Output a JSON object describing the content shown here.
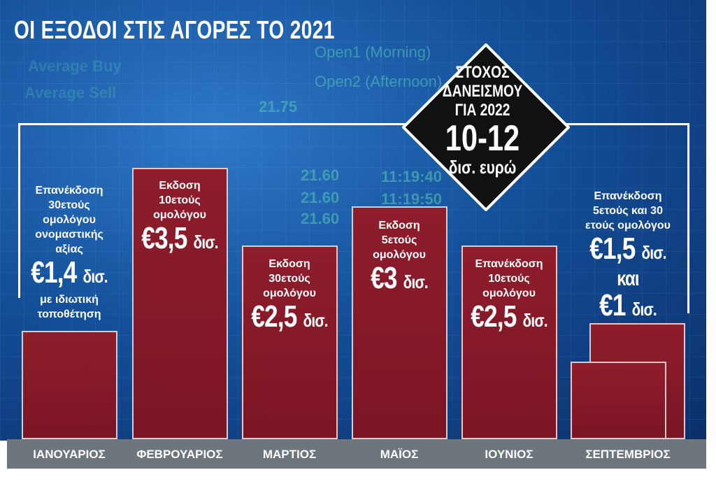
{
  "chart_data": {
    "type": "bar",
    "title": "ΟΙ ΕΞΟΔΟΙ ΣΤΙΣ ΑΓΟΡΕΣ ΤΟ 2021",
    "categories": [
      "ΙΑΝΟΥΑΡΙΟΣ",
      "ΦΕΒΡΟΥΑΡΙΟΣ",
      "ΜΑΡΤΙΟΣ",
      "ΜΑΪΟΣ",
      "ΙΟΥΝΙΟΣ",
      "ΣΕΠΤΕΜΒΡΙΟΣ"
    ],
    "unit": "δισ. ευρώ",
    "bars": [
      {
        "category": "ΙΑΝΟΥΑΡΙΟΣ",
        "values": [
          1.4
        ],
        "desc": [
          "Επανέκδοση",
          "30ετούς",
          "ομολόγου",
          "ονομαστικής",
          "αξίας"
        ],
        "amount": "€1,4",
        "suffix": "δισ.",
        "note": [
          "με ιδιωτική",
          "τοποθέτηση"
        ]
      },
      {
        "category": "ΦΕΒΡΟΥΑΡΙΟΣ",
        "values": [
          3.5
        ],
        "desc": [
          "Εκδοση",
          "10ετούς",
          "ομολόγου"
        ],
        "amount": "€3,5",
        "suffix": "δισ."
      },
      {
        "category": "ΜΑΡΤΙΟΣ",
        "values": [
          2.5
        ],
        "desc": [
          "Εκδοση",
          "30ετούς",
          "ομολόγου"
        ],
        "amount": "€2,5",
        "suffix": "δισ."
      },
      {
        "category": "ΜΑΪΟΣ",
        "values": [
          3
        ],
        "desc": [
          "Εκδοση",
          "5ετούς",
          "ομολόγου"
        ],
        "amount": "€3",
        "suffix": "δισ."
      },
      {
        "category": "ΙΟΥΝΙΟΣ",
        "values": [
          2.5
        ],
        "desc": [
          "Επανέκδοση",
          "10ετούς",
          "ομολόγου"
        ],
        "amount": "€2,5",
        "suffix": "δισ."
      },
      {
        "category": "ΣΕΠΤΕΜΒΡΙΟΣ",
        "values": [
          1.5,
          1
        ],
        "desc": [
          "Επανέκδοση",
          "5ετούς και 30",
          "ετούς ομολόγου"
        ],
        "amount": "€1,5",
        "suffix": "δισ.",
        "joiner": "και",
        "amount2": "€1",
        "suffix2": "δισ."
      }
    ],
    "ylim": [
      0,
      3.5
    ],
    "colors": {
      "bar": "#841a29",
      "axis": "#6d767c",
      "background": "#14509a"
    }
  },
  "target": {
    "lines": [
      "ΣΤΟΧΟΣ",
      "ΔΑΝΕΙΣΜΟΥ",
      "ΓΙΑ 2022"
    ],
    "range": "10-12",
    "unit": "δισ. ευρώ"
  },
  "background_text": [
    "Open1 (Morning)",
    "Open2 (Afternoon)",
    "Average Buy",
    "Average Sell",
    "21.75",
    "21.60",
    "21.60",
    "21.60",
    "11:19:40",
    "11:19:50"
  ]
}
